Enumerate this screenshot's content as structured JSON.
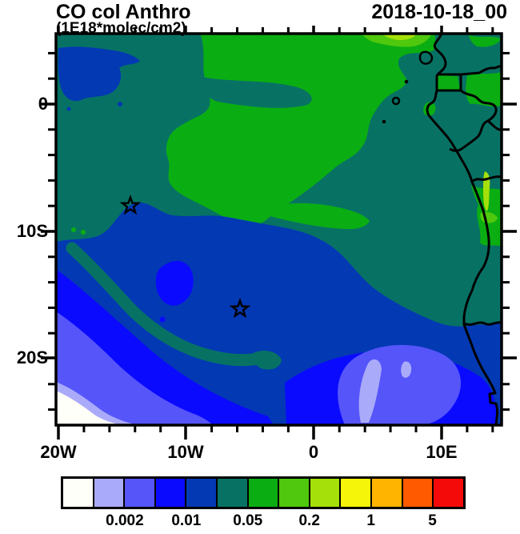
{
  "header": {
    "title": "CO col Anthro",
    "subtitle": "(1E18*molec/cm2)",
    "datetime": "2018-10-18_00"
  },
  "axes": {
    "y_ticks": [
      {
        "label": "0"
      },
      {
        "label": "10S"
      },
      {
        "label": "20S"
      }
    ],
    "x_ticks": [
      {
        "label": "20W"
      },
      {
        "label": "10W"
      },
      {
        "label": "0"
      },
      {
        "label": "10E"
      }
    ]
  },
  "palette": {
    "c01_white": "#fffffa",
    "c02_lavender": "#aaaafa",
    "c03_violet": "#5555fa",
    "c04_blue": "#0a0aff",
    "c05_darkblue": "#0339b3",
    "c06_teal": "#077264",
    "c07_green": "#0bae12",
    "c08_midgreen": "#4fc80d",
    "c09_yellowgreen": "#a5e00a",
    "c10_yellow": "#f5f50a",
    "c11_orange": "#ffb400",
    "c12_orangered": "#ff5a00",
    "c13_red": "#f50a0a"
  },
  "colorbar": {
    "colors": [
      "#fffffa",
      "#aaaafa",
      "#5555fa",
      "#0a0aff",
      "#0339b3",
      "#077264",
      "#0bae12",
      "#4fc80d",
      "#a5e00a",
      "#f5f50a",
      "#ffb400",
      "#ff5a00",
      "#f50a0a"
    ],
    "labels": [
      {
        "text": "0.002",
        "boundary_index": 2
      },
      {
        "text": "0.01",
        "boundary_index": 4
      },
      {
        "text": "0.05",
        "boundary_index": 6
      },
      {
        "text": "0.2",
        "boundary_index": 8
      },
      {
        "text": "1",
        "boundary_index": 10
      },
      {
        "text": "5",
        "boundary_index": 12
      }
    ]
  },
  "chart_data": {
    "type": "heatmap",
    "subtype": "filled-contour-latlon-map",
    "title": "CO col Anthro",
    "units": "1E18*molec/cm2",
    "timestamp": "2018-10-18_00",
    "region": "South Atlantic / western Africa (Gulf of Guinea to Namibia)",
    "x_axis": {
      "tick_labels": [
        "20W",
        "10W",
        "0",
        "10E"
      ],
      "lon_range_deg": [
        -20,
        14.7
      ],
      "minor_tick_step_deg": 2
    },
    "y_axis": {
      "tick_labels": [
        "0",
        "10S",
        "20S"
      ],
      "lat_range_deg": [
        -25.3,
        5.5
      ],
      "minor_tick_step_deg": 2
    },
    "contour_levels": [
      0.001,
      0.002,
      0.005,
      0.01,
      0.02,
      0.05,
      0.1,
      0.2,
      0.5,
      1,
      2,
      5
    ],
    "colorbar_labeled_levels": [
      0.002,
      0.01,
      0.05,
      0.2,
      1,
      5
    ],
    "palette_low_to_high": [
      "#fffffa",
      "#aaaafa",
      "#5555fa",
      "#0a0aff",
      "#0339b3",
      "#077264",
      "#0bae12",
      "#4fc80d",
      "#a5e00a",
      "#f5f50a",
      "#ffb400",
      "#ff5a00",
      "#f50a0a"
    ],
    "markers": [
      {
        "symbol": "open-star",
        "lon_deg": -14.4,
        "lat_deg": -8.1
      },
      {
        "symbol": "open-star",
        "lon_deg": -5.8,
        "lat_deg": -16.2
      }
    ],
    "field_summary": [
      {
        "region": "most of central/northern ocean and coastal land",
        "value_bin": "0.02-0.05 (teal)"
      },
      {
        "region": "large blob top-center, Gulf of Guinea land patches, Angola interior",
        "value_bin": "0.05-0.1 (green)"
      },
      {
        "region": "thin strips at top edge near coast and along Angola coast",
        "value_bin": "0.1-0.5 (light greens)"
      },
      {
        "region": "large south-central ocean mass and small patch near northwest corner",
        "value_bin": "0.01-0.02 (dark blue)"
      },
      {
        "region": "bands/patches inside southern mass",
        "value_bin": "0.005-0.01 (bright blue)"
      },
      {
        "region": "southwest corner rings and south-central patch",
        "value_bin": "0.001-0.005 (violet/lavender)"
      },
      {
        "region": "extreme southwest corner",
        "value_bin": "below 0.001 (white)"
      }
    ]
  }
}
